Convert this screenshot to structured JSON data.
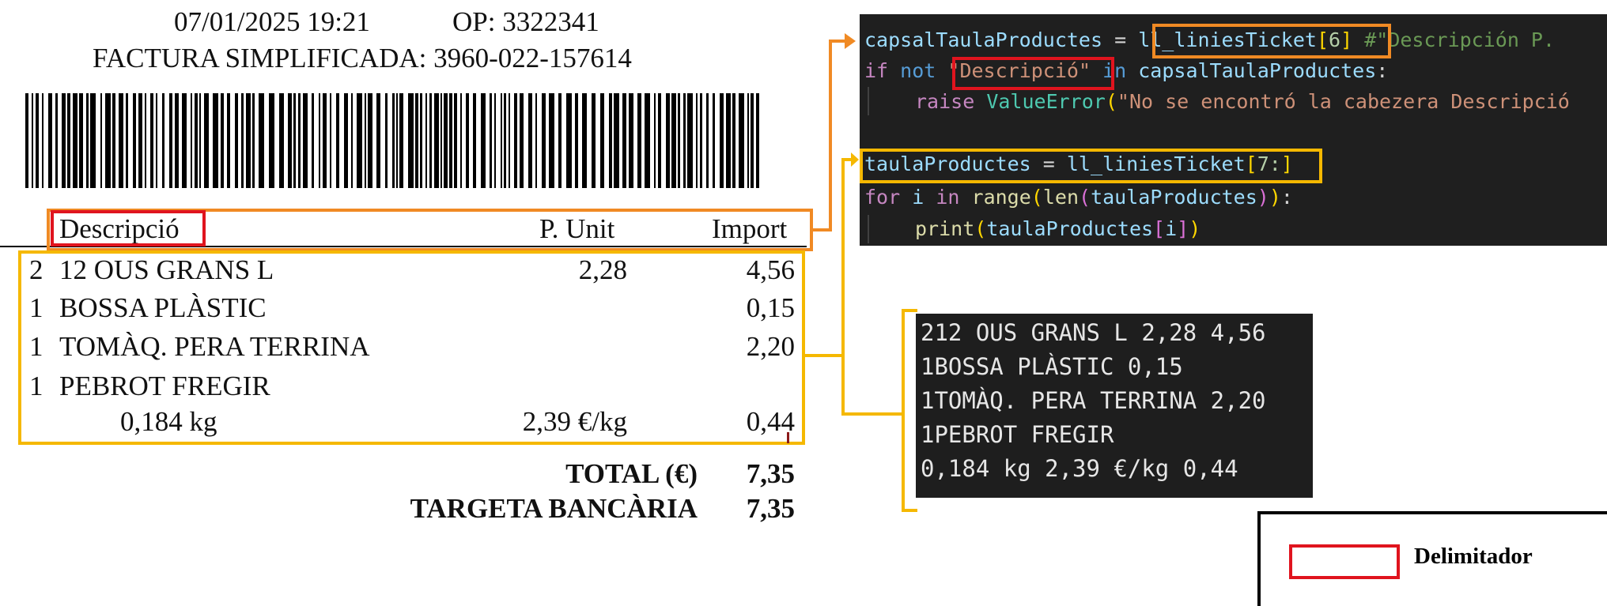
{
  "receipt": {
    "datetime": "07/01/2025 19:21",
    "op": "OP: 3322341",
    "invoice": "FACTURA SIMPLIFICADA: 3960-022-157614",
    "header": {
      "desc": "Descripció",
      "unit": "P. Unit",
      "import": "Import"
    },
    "items": [
      {
        "qty": "2",
        "desc": "12 OUS GRANS L",
        "unit": "2,28",
        "import": "4,56"
      },
      {
        "qty": "1",
        "desc": "BOSSA PLÀSTIC",
        "unit": "",
        "import": "0,15"
      },
      {
        "qty": "1",
        "desc": "TOMÀQ. PERA TERRINA",
        "unit": "",
        "import": "2,20"
      },
      {
        "qty": "1",
        "desc": "PEBROT FREGIR",
        "unit": "",
        "import": ""
      }
    ],
    "weight_line": {
      "weight": "0,184 kg",
      "unit": "2,39 €/kg",
      "import": "0,44"
    },
    "total_label": "TOTAL (€)",
    "total_value": "7,35",
    "card_label": "TARGETA BANCÀRIA",
    "card_value": "7,35"
  },
  "code": {
    "l1_var": "capsalTaulaProductes",
    "l1_eq": " = ",
    "l1_list": "ll_liniesTicket",
    "l1_idx": "6",
    "l1_comment": "#\"Descripción P.",
    "l2_if": "if",
    "l2_not": "not",
    "l2_str": "\"Descripció\"",
    "l2_in": "in",
    "l2_var": "capsalTaulaProductes",
    "l2_colon": ":",
    "l3_raise": "raise",
    "l3_cls": "ValueError",
    "l3_str": "\"No se encontró la cabezera Descripció",
    "l5_var": "taulaProductes",
    "l5_eq": " = ",
    "l5_list": "ll_liniesTicket",
    "l5_idx": "7:",
    "l6_for": "for",
    "l6_i": "i",
    "l6_in": "in",
    "l6_range": "range",
    "l6_len": "len",
    "l6_var": "taulaProductes",
    "l6_tail": "):",
    "l7_print": "print",
    "l7_var": "taulaProductes",
    "l7_i": "i"
  },
  "output": {
    "lines": [
      "212 OUS GRANS L 2,28 4,56",
      "1BOSSA PLÀSTIC 0,15",
      "1TOMÀQ. PERA TERRINA 2,20",
      "1PEBROT FREGIR",
      "0,184 kg 2,39 €/kg 0,44"
    ]
  },
  "legend": {
    "label": "Delimitador"
  },
  "colors": {
    "orange": "#f08a24",
    "yellow": "#f5b800",
    "red": "#e0141e"
  }
}
